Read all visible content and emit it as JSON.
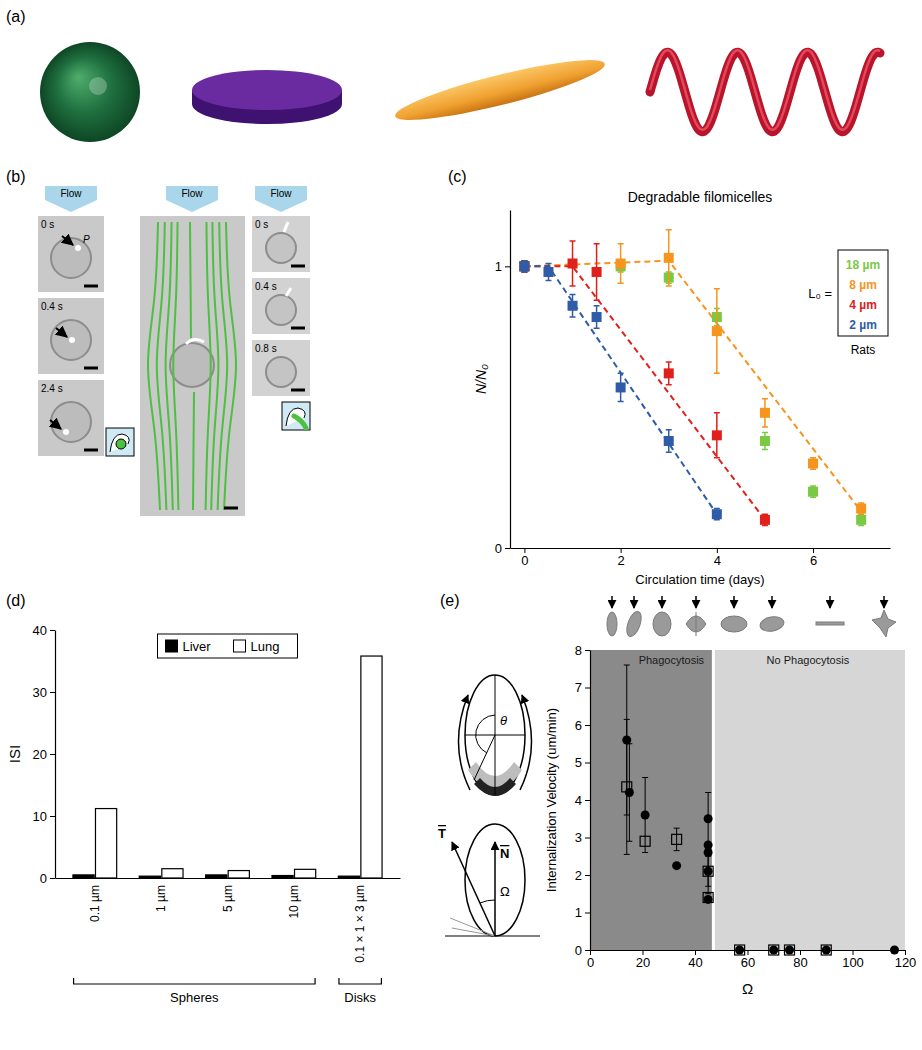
{
  "figure": {
    "panel_labels": [
      "(a)",
      "(b)",
      "(c)",
      "(d)",
      "(e)"
    ],
    "microscopy": {
      "flow": "Flow",
      "left_times": [
        "0 s",
        "0.4 s",
        "2.4 s"
      ],
      "particle": "P",
      "right_times": [
        "0 s",
        "0.4 s",
        "0.8 s"
      ]
    },
    "diagram": {
      "angle": "θ",
      "tangent": "T",
      "normal": "N",
      "omega": "Ω"
    }
  },
  "chart_data": [
    {
      "type": "scatter",
      "title": "Degradable filomicelles",
      "x_label": "Circulation time (days)",
      "y_label": "N/N₀",
      "legend_title": "L₀ =",
      "legend_note": "Rats",
      "legend": "upper right",
      "marker": "square",
      "xlim": [
        -0.3,
        7.6
      ],
      "xticks": [
        0,
        2,
        4,
        6
      ],
      "ylim": [
        0,
        1.2
      ],
      "yticks": [
        0,
        1
      ],
      "series": [
        {
          "name": "18 µm",
          "color": "#7ac943",
          "x": [
            0,
            2,
            3,
            4,
            5,
            6,
            7
          ],
          "values": [
            1.0,
            1.0,
            0.96,
            0.82,
            0.38,
            0.2,
            0.1
          ],
          "errors": [
            0.02,
            0.02,
            0.02,
            0.03,
            0.03,
            0.02,
            0.02
          ]
        },
        {
          "name": "8 µm",
          "color": "#f7941d",
          "x": [
            0,
            2,
            3,
            4,
            5,
            6,
            7
          ],
          "values": [
            1.0,
            1.01,
            1.03,
            0.77,
            0.48,
            0.3,
            0.14
          ],
          "errors": [
            0.02,
            0.07,
            0.1,
            0.15,
            0.05,
            0.02,
            0.02
          ],
          "fit_x": [
            0,
            3,
            7
          ],
          "fit_values": [
            1.0,
            1.02,
            0.13
          ],
          "line_style": "dashed"
        },
        {
          "name": "4 µm",
          "color": "#e0201b",
          "x": [
            0,
            1,
            1.5,
            3,
            4,
            5
          ],
          "values": [
            1.0,
            1.01,
            0.98,
            0.62,
            0.4,
            0.1
          ],
          "errors": [
            0.02,
            0.08,
            0.1,
            0.04,
            0.08,
            0.02
          ],
          "fit_x": [
            0,
            1,
            5
          ],
          "fit_values": [
            1.0,
            1.0,
            0.1
          ],
          "line_style": "dashed"
        },
        {
          "name": "2 µm",
          "color": "#2e5ca8",
          "x": [
            0,
            0.5,
            1,
            1.5,
            2,
            3,
            4
          ],
          "values": [
            1.0,
            0.98,
            0.86,
            0.82,
            0.57,
            0.38,
            0.12
          ],
          "errors": [
            0.02,
            0.03,
            0.04,
            0.04,
            0.05,
            0.04,
            0.02
          ],
          "fit_x": [
            0,
            0.5,
            4
          ],
          "fit_values": [
            1.0,
            1.0,
            0.12
          ],
          "line_style": "dashed"
        }
      ]
    },
    {
      "type": "bar",
      "y_label": "ISI",
      "legend": "upper center",
      "categories": [
        "0.1 µm",
        "1 µm",
        "5 µm",
        "10 µm",
        "0.1 × 1 × 3 µm"
      ],
      "category_groups": [
        "Spheres",
        "Spheres",
        "Spheres",
        "Spheres",
        "Disks"
      ],
      "ylim": [
        0,
        40
      ],
      "yticks": [
        0,
        10,
        20,
        30,
        40
      ],
      "series": [
        {
          "name": "Liver",
          "color": "#000000",
          "values": [
            0.5,
            0.3,
            0.5,
            0.4,
            0.3
          ]
        },
        {
          "name": "Lung",
          "color": "#ffffff",
          "values": [
            11.2,
            1.5,
            1.2,
            1.4,
            35.8
          ]
        }
      ]
    },
    {
      "type": "scatter",
      "x_label": "Ω",
      "y_label": "Internalization Velocity (um/min)",
      "xlim": [
        0,
        120
      ],
      "xticks": [
        0,
        20,
        40,
        60,
        80,
        100,
        120
      ],
      "ylim": [
        0,
        8
      ],
      "yticks": [
        0,
        1,
        2,
        3,
        4,
        5,
        6,
        7,
        8
      ],
      "regions": [
        {
          "label": "Phagocytosis",
          "range": [
            0,
            47
          ],
          "color": "#8a8a8a"
        },
        {
          "label": "No Phagocytosis",
          "range": [
            47,
            120
          ],
          "color": "#d6d6d6"
        }
      ],
      "series": [
        {
          "marker": "circle",
          "color": "#000000",
          "x": [
            14,
            15,
            21,
            33,
            45,
            45,
            45,
            45,
            45,
            57,
            70,
            76,
            90,
            116
          ],
          "values": [
            5.6,
            4.2,
            3.6,
            2.25,
            3.5,
            2.8,
            2.6,
            2.1,
            1.35,
            0,
            0,
            0,
            0,
            0
          ],
          "errors": [
            2.0,
            1.3,
            1.0,
            null,
            0.7,
            null,
            null,
            0.4,
            null,
            null,
            null,
            null,
            null,
            null
          ]
        },
        {
          "marker": "square",
          "color": "#000000",
          "x": [
            14,
            21,
            33,
            45,
            45,
            57,
            70,
            76,
            90
          ],
          "values": [
            4.35,
            2.9,
            2.95,
            2.1,
            1.4,
            0,
            0,
            0,
            0
          ],
          "errors": [
            1.8,
            null,
            0.3,
            0.6,
            null,
            null,
            null,
            null,
            null
          ]
        }
      ]
    }
  ]
}
